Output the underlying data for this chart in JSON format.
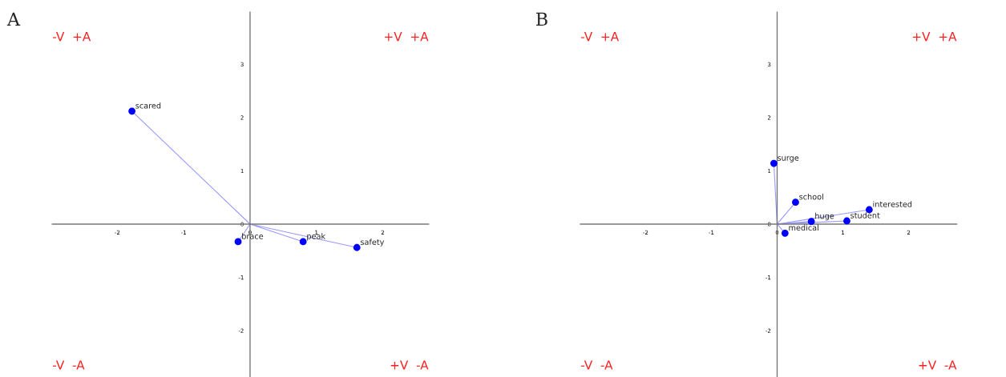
{
  "chart_data": [
    {
      "type": "scatter",
      "title": "A",
      "xlim": [
        -2.98,
        2.69
      ],
      "ylim": [
        -2.87,
        3.98
      ],
      "xticks": [
        -2,
        -1,
        0,
        1,
        2
      ],
      "yticks": [
        -2,
        -1,
        0,
        1,
        2,
        3
      ],
      "grid": false,
      "legend": false,
      "series": [
        {
          "type": "line",
          "color": "#9999ff",
          "marker": "none",
          "x": [
            0,
            -1.78,
            0,
            -0.18,
            0,
            0.8,
            0,
            1.61
          ],
          "values": [
            0,
            2.12,
            0,
            -0.33,
            0,
            -0.33,
            0,
            -0.44
          ]
        },
        {
          "color": "#0000ff",
          "marker": "circle",
          "x": [
            -1.78,
            -0.18,
            0.8,
            1.61
          ],
          "values": [
            2.12,
            -0.33,
            -0.33,
            -0.44
          ]
        }
      ],
      "annotations": [
        {
          "text": "scared",
          "x": -1.78,
          "y": 2.12
        },
        {
          "text": "brace",
          "x": -0.18,
          "y": -0.33
        },
        {
          "text": "peak",
          "x": 0.8,
          "y": -0.33
        },
        {
          "text": "safety",
          "x": 1.61,
          "y": -0.44
        },
        "-V  +A",
        "+V  +A",
        "-V  -A",
        "+V  -A"
      ]
    },
    {
      "type": "scatter",
      "title": "B",
      "xlim": [
        -2.99,
        2.73
      ],
      "ylim": [
        -2.87,
        3.98
      ],
      "xticks": [
        -2,
        -1,
        0,
        1,
        2
      ],
      "yticks": [
        -2,
        -1,
        0,
        1,
        2,
        3
      ],
      "grid": false,
      "legend": false,
      "series": [
        {
          "type": "line",
          "color": "#9999ff",
          "marker": "none",
          "x": [
            0,
            -0.05,
            0,
            0.28,
            0,
            1.4,
            0,
            0.52,
            0,
            1.06,
            0,
            0.12
          ],
          "values": [
            0,
            1.14,
            0,
            0.41,
            0,
            0.27,
            0,
            0.05,
            0,
            0.06,
            0,
            -0.17
          ]
        },
        {
          "color": "#0000ff",
          "marker": "circle",
          "x": [
            -0.05,
            0.28,
            1.4,
            0.52,
            1.06,
            0.12
          ],
          "values": [
            1.14,
            0.41,
            0.27,
            0.05,
            0.06,
            -0.17
          ]
        }
      ],
      "annotations": [
        {
          "text": "surge",
          "x": -0.05,
          "y": 1.14
        },
        {
          "text": "school",
          "x": 0.28,
          "y": 0.41
        },
        {
          "text": "interested",
          "x": 1.4,
          "y": 0.27
        },
        {
          "text": "huge",
          "x": 0.52,
          "y": 0.05
        },
        {
          "text": "student",
          "x": 1.06,
          "y": 0.06
        },
        {
          "text": "medical",
          "x": 0.12,
          "y": -0.17
        },
        "-V  +A",
        "+V  +A",
        "-V  -A",
        "+V  -A"
      ]
    }
  ]
}
